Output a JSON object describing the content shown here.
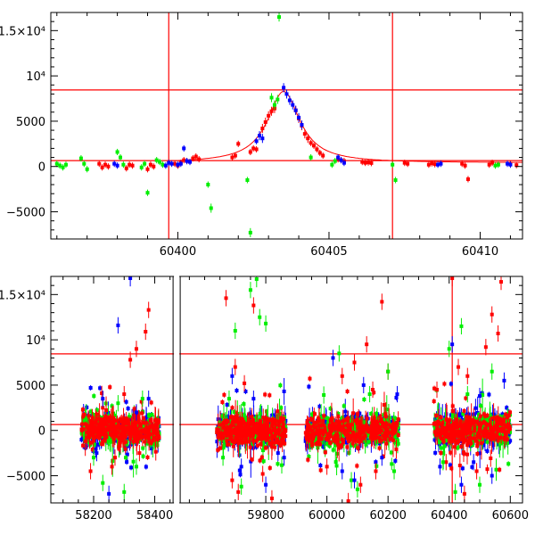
{
  "colors": {
    "red": "#ff0000",
    "green": "#00ee00",
    "blue": "#0000ff",
    "axis": "#000000"
  },
  "chart_data": [
    {
      "type": "scatter",
      "panel": "top",
      "title": "",
      "xlabel": "",
      "ylabel": "",
      "xlim": [
        60395.8,
        60411.4
      ],
      "ylim": [
        -8000,
        17000
      ],
      "x_ticks": [
        {
          "value": 60400,
          "label": "60400"
        },
        {
          "value": 60405,
          "label": "60405"
        },
        {
          "value": 60410,
          "label": "60410"
        }
      ],
      "y_ticks": [
        {
          "value": 15000,
          "label": "1.5×10⁴"
        },
        {
          "value": 10000,
          "label": "10⁴"
        },
        {
          "value": 5000,
          "label": "5000"
        },
        {
          "value": 0,
          "label": "0"
        },
        {
          "value": -5000,
          "label": "−5000"
        }
      ],
      "reference_lines": {
        "horizontal": [
          8450,
          650
        ],
        "vertical": [
          60399.7,
          60407.1
        ]
      },
      "model_curve": {
        "peak_x": 60403.5,
        "peak_y": 8300,
        "baseline": 400,
        "width": 0.65,
        "x_range": [
          60399.9,
          60411.4
        ]
      },
      "series": [
        {
          "color": "red",
          "points": [
            [
              60397.4,
              300
            ],
            [
              60397.5,
              -100
            ],
            [
              60397.6,
              200
            ],
            [
              60397.7,
              0
            ],
            [
              60398.3,
              -200
            ],
            [
              60398.4,
              200
            ],
            [
              60398.5,
              100
            ],
            [
              60399.0,
              -300
            ],
            [
              60399.1,
              200
            ],
            [
              60399.2,
              0
            ],
            [
              60399.9,
              300
            ],
            [
              60400.0,
              100
            ],
            [
              60400.1,
              400
            ],
            [
              60400.2,
              700
            ],
            [
              60400.3,
              600
            ],
            [
              60400.5,
              900
            ],
            [
              60400.6,
              1100
            ],
            [
              60400.7,
              800
            ],
            [
              60401.8,
              1000
            ],
            [
              60401.9,
              1200
            ],
            [
              60402.0,
              2500
            ],
            [
              60402.4,
              1600
            ],
            [
              60402.5,
              2000
            ],
            [
              60402.6,
              1900
            ],
            [
              60402.8,
              4200
            ],
            [
              60402.9,
              4900
            ],
            [
              60403.0,
              5600
            ],
            [
              60403.1,
              6100
            ],
            [
              60403.2,
              6400
            ],
            [
              60403.9,
              6200
            ],
            [
              60404.0,
              5300
            ],
            [
              60404.1,
              4500
            ],
            [
              60404.2,
              3600
            ],
            [
              60404.3,
              3100
            ],
            [
              60404.4,
              2600
            ],
            [
              60404.5,
              2300
            ],
            [
              60404.6,
              1900
            ],
            [
              60404.7,
              1500
            ],
            [
              60404.8,
              1200
            ],
            [
              60405.3,
              800
            ],
            [
              60405.4,
              700
            ],
            [
              60405.5,
              600
            ],
            [
              60406.1,
              500
            ],
            [
              60406.2,
              400
            ],
            [
              60406.3,
              450
            ],
            [
              60406.4,
              380
            ],
            [
              60407.5,
              400
            ],
            [
              60407.6,
              300
            ],
            [
              60408.3,
              200
            ],
            [
              60408.4,
              350
            ],
            [
              60408.5,
              250
            ],
            [
              60409.4,
              300
            ],
            [
              60409.5,
              100
            ],
            [
              60409.6,
              -1400
            ],
            [
              60410.3,
              200
            ],
            [
              60410.4,
              400
            ],
            [
              60411.0,
              300
            ],
            [
              60411.2,
              150
            ]
          ]
        },
        {
          "color": "green",
          "points": [
            [
              60396.0,
              300
            ],
            [
              60396.1,
              100
            ],
            [
              60396.2,
              -100
            ],
            [
              60396.3,
              200
            ],
            [
              60396.8,
              900
            ],
            [
              60396.9,
              300
            ],
            [
              60397.0,
              -300
            ],
            [
              60398.0,
              1600
            ],
            [
              60398.1,
              1000
            ],
            [
              60398.2,
              200
            ],
            [
              60398.8,
              -100
            ],
            [
              60398.9,
              300
            ],
            [
              60399.0,
              -2900
            ],
            [
              60399.3,
              700
            ],
            [
              60399.4,
              500
            ],
            [
              60399.5,
              200
            ],
            [
              60401.0,
              -2000
            ],
            [
              60401.1,
              -4600
            ],
            [
              60402.3,
              -1500
            ],
            [
              60402.4,
              -7300
            ],
            [
              60403.1,
              7600
            ],
            [
              60403.2,
              6800
            ],
            [
              60403.3,
              7400
            ],
            [
              60403.35,
              16500
            ],
            [
              60404.4,
              1000
            ],
            [
              60405.1,
              200
            ],
            [
              60405.2,
              600
            ],
            [
              60407.1,
              200
            ],
            [
              60407.2,
              -1500
            ],
            [
              60410.5,
              100
            ],
            [
              60410.6,
              200
            ]
          ]
        },
        {
          "color": "blue",
          "points": [
            [
              60397.9,
              300
            ],
            [
              60398.0,
              100
            ],
            [
              60399.6,
              100
            ],
            [
              60399.7,
              400
            ],
            [
              60399.8,
              300
            ],
            [
              60400.0,
              200
            ],
            [
              60400.1,
              300
            ],
            [
              60400.2,
              2000
            ],
            [
              60400.3,
              600
            ],
            [
              60400.4,
              500
            ],
            [
              60402.6,
              2800
            ],
            [
              60402.7,
              3400
            ],
            [
              60402.8,
              3100
            ],
            [
              60403.5,
              8700
            ],
            [
              60403.6,
              8000
            ],
            [
              60403.7,
              7300
            ],
            [
              60403.8,
              6800
            ],
            [
              60403.9,
              6200
            ],
            [
              60404.0,
              5400
            ],
            [
              60404.1,
              4600
            ],
            [
              60405.3,
              1000
            ],
            [
              60405.4,
              700
            ],
            [
              60405.5,
              400
            ],
            [
              60408.6,
              200
            ],
            [
              60408.7,
              300
            ],
            [
              60410.9,
              300
            ],
            [
              60411.0,
              200
            ]
          ]
        }
      ]
    },
    {
      "type": "scatter",
      "panel": "bottom",
      "title": "",
      "xlabel": "",
      "ylabel": "",
      "xlim": [
        58060,
        60640
      ],
      "ylim": [
        -8000,
        17000
      ],
      "axis_break": [
        58460,
        59520
      ],
      "x_ticks": [
        {
          "value": 58200,
          "label": "58200"
        },
        {
          "value": 58400,
          "label": "58400"
        },
        {
          "value": 59800,
          "label": "59800"
        },
        {
          "value": 60000,
          "label": "60000"
        },
        {
          "value": 60200,
          "label": "60200"
        },
        {
          "value": 60400,
          "label": "60400"
        },
        {
          "value": 60600,
          "label": "60600"
        }
      ],
      "y_ticks": [
        {
          "value": 15000,
          "label": "1.5×10⁴"
        },
        {
          "value": 10000,
          "label": "10⁴"
        },
        {
          "value": 5000,
          "label": "5000"
        },
        {
          "value": 0,
          "label": "0"
        },
        {
          "value": -5000,
          "label": "−5000"
        }
      ],
      "reference_lines": {
        "horizontal": [
          8450,
          650
        ],
        "vertical": [
          60410
        ]
      },
      "season_ranges": [
        [
          58160,
          58415
        ],
        [
          59640,
          59865
        ],
        [
          59930,
          60235
        ],
        [
          60350,
          60600
        ]
      ],
      "series": [
        {
          "color": "red",
          "points": [
            [
              58190,
              -4500
            ],
            [
              58230,
              2500
            ],
            [
              58270,
              -3000
            ],
            [
              58320,
              7800
            ],
            [
              58340,
              9000
            ],
            [
              58350,
              -2500
            ],
            [
              58370,
              10900
            ],
            [
              58380,
              13300
            ],
            [
              58300,
              4000
            ],
            [
              58260,
              -4000
            ],
            [
              59670,
              14600
            ],
            [
              59690,
              -5500
            ],
            [
              59710,
              -6800
            ],
            [
              59730,
              5200
            ],
            [
              59760,
              13800
            ],
            [
              59790,
              -4800
            ],
            [
              59820,
              -7500
            ],
            [
              59700,
              7000
            ],
            [
              60000,
              -4000
            ],
            [
              60050,
              6000
            ],
            [
              60090,
              7500
            ],
            [
              60130,
              9500
            ],
            [
              60160,
              -4500
            ],
            [
              60180,
              14200
            ],
            [
              60200,
              6500
            ],
            [
              60070,
              -7800
            ],
            [
              60110,
              -6000
            ],
            [
              60150,
              4500
            ],
            [
              60360,
              4500
            ],
            [
              60390,
              -3500
            ],
            [
              60410,
              16800
            ],
            [
              60430,
              7000
            ],
            [
              60460,
              6000
            ],
            [
              60490,
              -4500
            ],
            [
              60520,
              9200
            ],
            [
              60540,
              12800
            ],
            [
              60560,
              10700
            ],
            [
              60570,
              16400
            ],
            [
              60450,
              -7000
            ]
          ]
        },
        {
          "color": "green",
          "points": [
            [
              58200,
              -3000
            ],
            [
              58230,
              -5800
            ],
            [
              58300,
              -6800
            ],
            [
              58340,
              -4000
            ],
            [
              58360,
              3500
            ],
            [
              58280,
              3000
            ],
            [
              59660,
              -3000
            ],
            [
              59700,
              11000
            ],
            [
              59720,
              -6200
            ],
            [
              59750,
              15500
            ],
            [
              59770,
              16700
            ],
            [
              59780,
              12500
            ],
            [
              59800,
              11800
            ],
            [
              59680,
              3500
            ],
            [
              60040,
              8500
            ],
            [
              60080,
              -5500
            ],
            [
              60100,
              -6500
            ],
            [
              60140,
              4000
            ],
            [
              60200,
              6500
            ],
            [
              60220,
              -4500
            ],
            [
              60380,
              -3500
            ],
            [
              60400,
              9000
            ],
            [
              60420,
              -6800
            ],
            [
              60440,
              11500
            ],
            [
              60460,
              4000
            ],
            [
              60500,
              -6000
            ],
            [
              60540,
              6500
            ]
          ]
        },
        {
          "color": "blue",
          "points": [
            [
              58210,
              -2500
            ],
            [
              58250,
              -7000
            ],
            [
              58280,
              11600
            ],
            [
              58320,
              16800
            ],
            [
              58340,
              2000
            ],
            [
              58380,
              3500
            ],
            [
              58230,
              3500
            ],
            [
              59690,
              6000
            ],
            [
              59720,
              -4000
            ],
            [
              59760,
              3500
            ],
            [
              59800,
              -6000
            ],
            [
              59840,
              -2500
            ],
            [
              59860,
              -3000
            ],
            [
              60020,
              8000
            ],
            [
              60050,
              -4500
            ],
            [
              60090,
              -5500
            ],
            [
              60120,
              5000
            ],
            [
              60180,
              -3000
            ],
            [
              60230,
              4000
            ],
            [
              60370,
              -4000
            ],
            [
              60410,
              9500
            ],
            [
              60440,
              -6000
            ],
            [
              60480,
              -3500
            ],
            [
              60500,
              3800
            ],
            [
              60540,
              -5000
            ],
            [
              60580,
              5500
            ]
          ]
        }
      ],
      "dense_band": {
        "seed": 7,
        "points_per_season": 300,
        "core_spread": 1100
      }
    }
  ]
}
